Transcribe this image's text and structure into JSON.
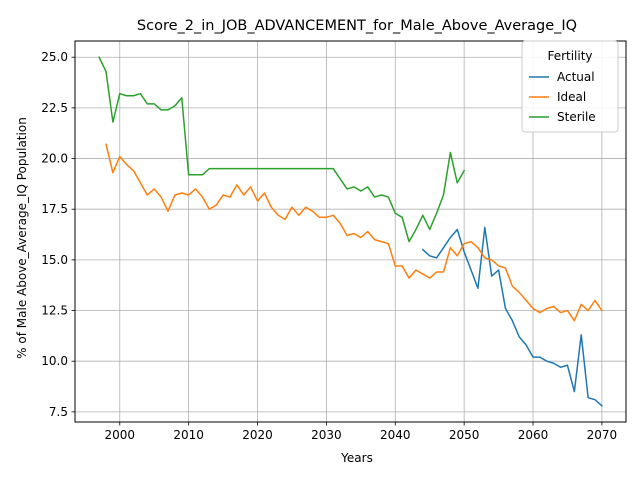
{
  "chart_data": {
    "type": "line",
    "title": "Score_2_in_JOB_ADVANCEMENT_for_Male_Above_Average_IQ",
    "xlabel": "Years",
    "ylabel": "% of Male Above_Average_IQ Population",
    "xlim": [
      1993.5,
      2073.5
    ],
    "ylim": [
      7.0,
      25.8
    ],
    "xticks": [
      2000,
      2010,
      2020,
      2030,
      2040,
      2050,
      2060,
      2070
    ],
    "yticks": [
      7.5,
      10.0,
      12.5,
      15.0,
      17.5,
      20.0,
      22.5,
      25.0
    ],
    "xtick_labels": [
      "2000",
      "2010",
      "2020",
      "2030",
      "2040",
      "2050",
      "2060",
      "2070"
    ],
    "ytick_labels": [
      "7.5",
      "10.0",
      "12.5",
      "15.0",
      "17.5",
      "20.0",
      "22.5",
      "25.0"
    ],
    "grid": true,
    "legend": {
      "title": "Fertility",
      "position": "top-right"
    },
    "series": [
      {
        "name": "Actual",
        "color": "#1f77b4",
        "x": [
          2044,
          2045,
          2046,
          2047,
          2048,
          2049,
          2050,
          2051,
          2052,
          2053,
          2054,
          2055,
          2056,
          2057,
          2058,
          2059,
          2060,
          2061,
          2062,
          2063,
          2064,
          2065,
          2066,
          2067,
          2068,
          2069,
          2070
        ],
        "y": [
          15.5,
          15.2,
          15.1,
          15.6,
          16.1,
          16.5,
          15.4,
          14.5,
          13.6,
          16.6,
          14.2,
          14.5,
          12.6,
          12.0,
          11.2,
          10.8,
          10.2,
          10.2,
          10.0,
          9.9,
          9.7,
          9.8,
          8.5,
          11.3,
          8.2,
          8.1,
          7.8
        ]
      },
      {
        "name": "Ideal",
        "color": "#ff7f0e",
        "x": [
          1998,
          1999,
          2000,
          2001,
          2002,
          2003,
          2004,
          2005,
          2006,
          2007,
          2008,
          2009,
          2010,
          2011,
          2012,
          2013,
          2014,
          2015,
          2016,
          2017,
          2018,
          2019,
          2020,
          2021,
          2022,
          2023,
          2024,
          2025,
          2026,
          2027,
          2028,
          2029,
          2030,
          2031,
          2032,
          2033,
          2034,
          2035,
          2036,
          2037,
          2038,
          2039,
          2040,
          2041,
          2042,
          2043,
          2044,
          2045,
          2046,
          2047,
          2048,
          2049,
          2050,
          2051,
          2052,
          2053,
          2054,
          2055,
          2056,
          2057,
          2058,
          2059,
          2060,
          2061,
          2062,
          2063,
          2064,
          2065,
          2066,
          2067,
          2068,
          2069,
          2070
        ],
        "y": [
          20.7,
          19.3,
          20.1,
          19.7,
          19.4,
          18.8,
          18.2,
          18.5,
          18.1,
          17.4,
          18.2,
          18.3,
          18.2,
          18.5,
          18.1,
          17.5,
          17.7,
          18.2,
          18.1,
          18.7,
          18.2,
          18.6,
          17.9,
          18.3,
          17.6,
          17.2,
          17.0,
          17.6,
          17.2,
          17.6,
          17.4,
          17.1,
          17.1,
          17.2,
          16.8,
          16.2,
          16.3,
          16.1,
          16.4,
          16.0,
          15.9,
          15.8,
          14.7,
          14.7,
          14.1,
          14.5,
          14.3,
          14.1,
          14.4,
          14.4,
          15.6,
          15.2,
          15.8,
          15.9,
          15.6,
          15.1,
          15.0,
          14.7,
          14.6,
          13.7,
          13.4,
          13.0,
          12.6,
          12.4,
          12.6,
          12.7,
          12.4,
          12.5,
          12.0,
          12.8,
          12.5,
          13.0,
          12.5
        ]
      },
      {
        "name": "Sterile",
        "color": "#2ca02c",
        "x": [
          1997,
          1998,
          1999,
          2000,
          2001,
          2002,
          2003,
          2004,
          2005,
          2006,
          2007,
          2008,
          2009,
          2010,
          2011,
          2012,
          2013,
          2014,
          2015,
          2016,
          2017,
          2018,
          2019,
          2020,
          2021,
          2022,
          2023,
          2024,
          2025,
          2026,
          2027,
          2028,
          2029,
          2030,
          2031,
          2032,
          2033,
          2034,
          2035,
          2036,
          2037,
          2038,
          2039,
          2040,
          2041,
          2042,
          2043,
          2044,
          2045,
          2046,
          2047,
          2048,
          2049,
          2050
        ],
        "y": [
          25.0,
          24.3,
          21.8,
          23.2,
          23.1,
          23.1,
          23.2,
          22.7,
          22.7,
          22.4,
          22.4,
          22.6,
          23.0,
          19.2,
          19.2,
          19.2,
          19.5,
          19.5,
          19.5,
          19.5,
          19.5,
          19.5,
          19.5,
          19.5,
          19.5,
          19.5,
          19.5,
          19.5,
          19.5,
          19.5,
          19.5,
          19.5,
          19.5,
          19.5,
          19.5,
          19.0,
          18.5,
          18.6,
          18.4,
          18.6,
          18.1,
          18.2,
          18.1,
          17.3,
          17.1,
          15.9,
          16.5,
          17.2,
          16.5,
          17.3,
          18.2,
          20.3,
          18.8,
          19.4
        ]
      }
    ]
  }
}
